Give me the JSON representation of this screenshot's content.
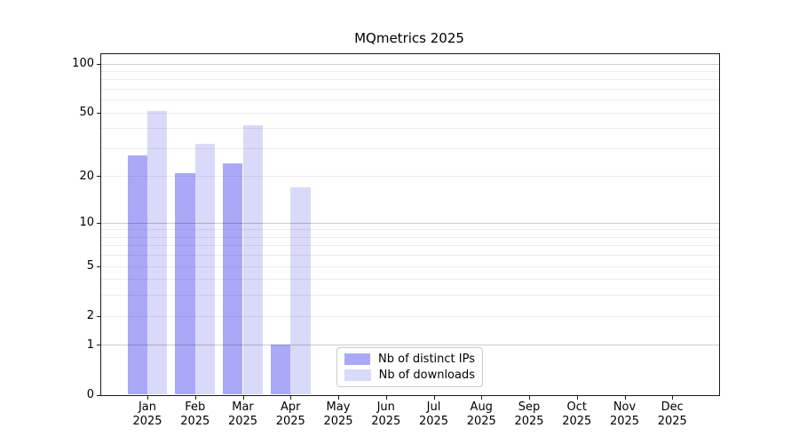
{
  "chart_data": {
    "type": "bar",
    "title": "MQmetrics 2025",
    "categories": [
      "Jan",
      "Feb",
      "Mar",
      "Apr",
      "May",
      "Jun",
      "Jul",
      "Aug",
      "Sep",
      "Oct",
      "Nov",
      "Dec"
    ],
    "category_year": "2025",
    "series": [
      {
        "name": "Nb of distinct IPs",
        "color": "#a9a9f8",
        "values": [
          27,
          21,
          24,
          1,
          0,
          0,
          0,
          0,
          0,
          0,
          0,
          0
        ]
      },
      {
        "name": "Nb of downloads",
        "color": "#d9d9f9",
        "values": [
          51,
          32,
          42,
          17,
          0,
          0,
          0,
          0,
          0,
          0,
          0,
          0
        ]
      }
    ],
    "y_axis": {
      "scale": "log10(1+v)",
      "ticks": [
        0,
        1,
        2,
        5,
        10,
        20,
        50,
        100
      ],
      "major_gridlines": [
        1,
        10,
        100
      ],
      "minor_gridlines": [
        2,
        3,
        4,
        5,
        6,
        7,
        8,
        9,
        20,
        30,
        40,
        50,
        60,
        70,
        80,
        90
      ],
      "ylim": [
        0,
        110
      ]
    },
    "legend": {
      "position": "lower center",
      "entries": [
        "Nb of distinct IPs",
        "Nb of downloads"
      ]
    },
    "grid": true
  }
}
